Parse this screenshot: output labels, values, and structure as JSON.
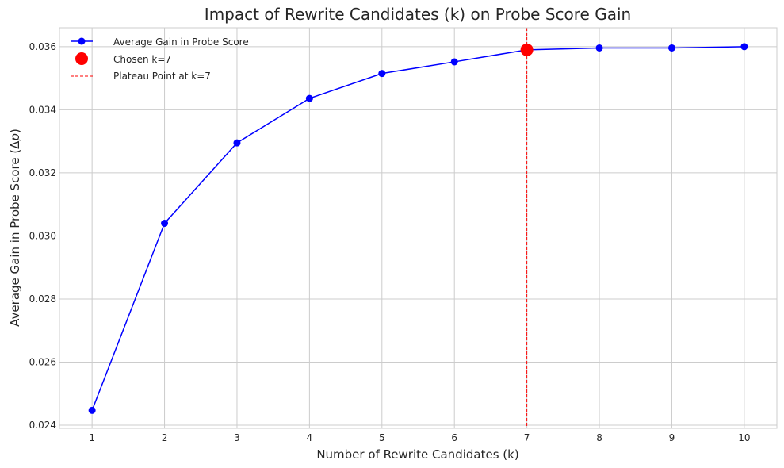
{
  "chart_data": {
    "type": "line",
    "title": "Impact of Rewrite Candidates (k) on Probe Score Gain",
    "xlabel": "Number of Rewrite Candidates (k)",
    "ylabel_prefix": "Average Gain in Probe Score (Δ",
    "ylabel_var": "p",
    "ylabel_suffix": ")",
    "x": [
      1,
      2,
      3,
      4,
      5,
      6,
      7,
      8,
      9,
      10
    ],
    "xlim": [
      0.55,
      10.45
    ],
    "ylim": [
      0.0239,
      0.0366
    ],
    "yticks": [
      0.024,
      0.026,
      0.028,
      0.03,
      0.032,
      0.034,
      0.036
    ],
    "ytick_labels": [
      "0.024",
      "0.026",
      "0.028",
      "0.030",
      "0.032",
      "0.034",
      "0.036"
    ],
    "xtick_labels": [
      "1",
      "2",
      "3",
      "4",
      "5",
      "6",
      "7",
      "8",
      "9",
      "10"
    ],
    "grid": true,
    "legend_position": "top-left",
    "series": [
      {
        "name": "Average Gain in Probe Score",
        "color": "#0000ff",
        "marker": "circle",
        "values": [
          0.02447,
          0.0304,
          0.03295,
          0.03436,
          0.03515,
          0.03552,
          0.0359,
          0.03596,
          0.03596,
          0.036
        ]
      }
    ],
    "highlight": {
      "name": "Chosen k=7",
      "x": 7,
      "y": 0.0359,
      "color": "#ff0000"
    },
    "vline": {
      "name": "Plateau Point at k=7",
      "x": 7,
      "color": "#ff0000",
      "style": "dashed"
    }
  }
}
